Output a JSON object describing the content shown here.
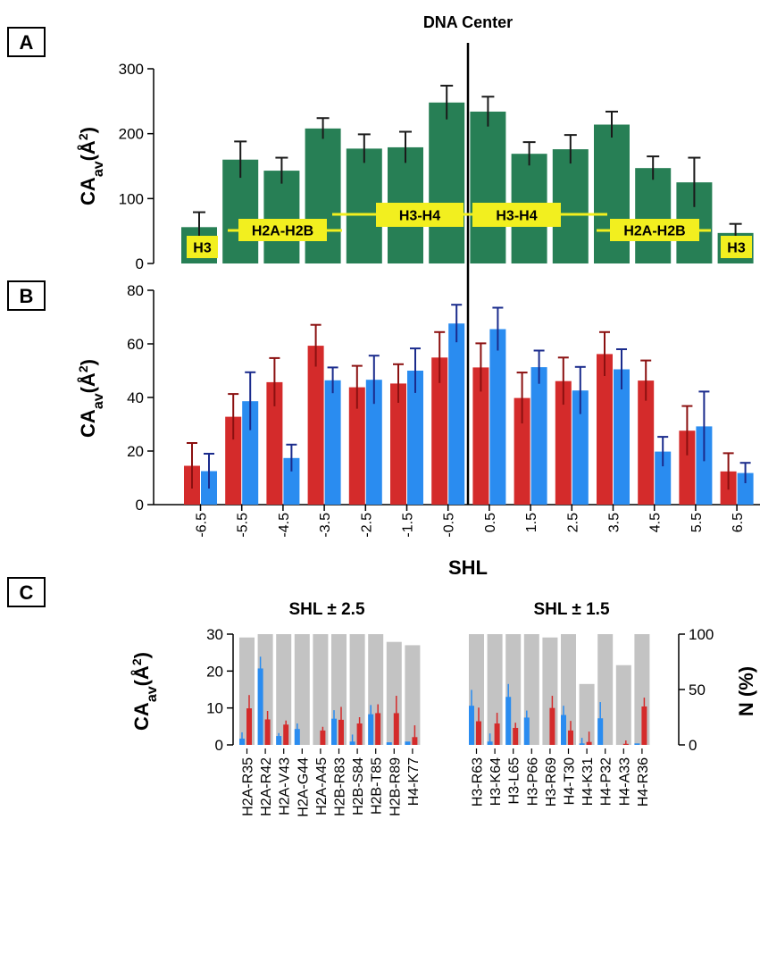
{
  "colors": {
    "green": "#277f55",
    "green_err": "#1a1a1a",
    "red": "#d42b2b",
    "red_err": "#8b1010",
    "blue": "#2a8cf0",
    "blue_err": "#1a2b8c",
    "gray": "#c3c3c3",
    "yellow": "#f2ef1f",
    "axis": "#000000"
  },
  "panels": {
    "a": "A",
    "b": "B",
    "c": "C"
  },
  "chart_data": [
    {
      "id": "A",
      "type": "bar",
      "title": "DNA Center",
      "ylabel": "CA_av(Å²)",
      "ylim": [
        0,
        300
      ],
      "yticks": [
        0,
        100,
        200,
        300
      ],
      "categories": [
        "-6.5",
        "-5.5",
        "-4.5",
        "-3.5",
        "-2.5",
        "-1.5",
        "-0.5",
        "0.5",
        "1.5",
        "2.5",
        "3.5",
        "4.5",
        "5.5",
        "6.5"
      ],
      "values": [
        56,
        160,
        143,
        208,
        177,
        179,
        248,
        234,
        169,
        176,
        214,
        147,
        125,
        47
      ],
      "errors": [
        23,
        28,
        20,
        16,
        22,
        24,
        26,
        23,
        18,
        22,
        20,
        18,
        38,
        14
      ],
      "annotations": [
        "H3",
        "H2A-H2B",
        "H3-H4",
        "H3-H4",
        "H2A-H2B",
        "H3"
      ]
    },
    {
      "id": "B",
      "type": "bar",
      "xlabel": "SHL",
      "ylabel": "CA_av(Å²)",
      "ylim": [
        0,
        80
      ],
      "yticks": [
        0,
        20,
        40,
        60,
        80
      ],
      "categories": [
        "-6.5",
        "-5.5",
        "-4.5",
        "-3.5",
        "-2.5",
        "-1.5",
        "-0.5",
        "0.5",
        "1.5",
        "2.5",
        "3.5",
        "4.5",
        "5.5",
        "6.5"
      ],
      "series": [
        {
          "values": [
            14.5,
            32.8,
            45.7,
            59.3,
            43.8,
            45.2,
            54.9,
            51.2,
            39.8,
            46.1,
            56.2,
            46.3,
            27.6,
            12.4
          ],
          "errors": [
            8.5,
            8.5,
            9.0,
            7.8,
            8.0,
            7.2,
            9.5,
            9.0,
            9.5,
            8.8,
            8.2,
            7.5,
            9.2,
            6.8
          ]
        },
        {
          "values": [
            12.5,
            38.6,
            17.4,
            46.4,
            46.6,
            50.0,
            67.6,
            65.5,
            51.3,
            42.6,
            50.5,
            19.8,
            29.2,
            11.8
          ],
          "errors": [
            6.5,
            10.8,
            5.0,
            4.8,
            9.0,
            8.3,
            7.0,
            8.0,
            6.2,
            8.8,
            7.5,
            5.5,
            13.0,
            3.8
          ]
        }
      ]
    },
    {
      "id": "C-left",
      "type": "bar",
      "title": "SHL ± 2.5",
      "ylabel": "CA_av(Å²)",
      "ylim": [
        0,
        30
      ],
      "yticks": [
        0,
        10,
        20,
        30
      ],
      "y2label": "N (%)",
      "y2lim": [
        0,
        100
      ],
      "y2ticks": [
        0,
        50,
        100
      ],
      "categories": [
        "H2A-R35",
        "H2A-R42",
        "H2A-V43",
        "H2A-G44",
        "H2A-A45",
        "H2B-R83",
        "H2B-S84",
        "H2B-T85",
        "H2B-R89",
        "H4-K77"
      ],
      "n_percent": [
        97,
        100,
        100,
        100,
        100,
        100,
        100,
        100,
        93,
        90
      ],
      "series": [
        {
          "values": [
            1.7,
            20.7,
            2.4,
            4.3,
            0,
            7.1,
            0.9,
            8.3,
            0.7,
            0.9
          ],
          "errors": [
            1.7,
            3.2,
            0.8,
            1.5,
            0,
            2.3,
            1.9,
            2.5,
            0,
            0
          ]
        },
        {
          "values": [
            9.9,
            6.9,
            5.5,
            0,
            3.9,
            6.8,
            5.8,
            8.6,
            8.6,
            2.1
          ],
          "errors": [
            3.6,
            2.3,
            1.1,
            0,
            1.0,
            3.5,
            1.7,
            2.4,
            4.7,
            3.2
          ]
        }
      ]
    },
    {
      "id": "C-right",
      "type": "bar",
      "title": "SHL ± 1.5",
      "ylim": [
        0,
        30
      ],
      "y2label": "N (%)",
      "y2lim": [
        0,
        100
      ],
      "y2ticks": [
        0,
        50,
        100
      ],
      "categories": [
        "H3-R63",
        "H3-K64",
        "H3-L65",
        "H3-P66",
        "H3-R69",
        "H4-T30",
        "H4-K31",
        "H4-P32",
        "H4-A33",
        "H4-R36"
      ],
      "n_percent": [
        100,
        100,
        100,
        100,
        97,
        100,
        55,
        100,
        72,
        100
      ],
      "series": [
        {
          "values": [
            10.6,
            0.9,
            13.0,
            7.4,
            0,
            8.1,
            0.4,
            7.2,
            0,
            0.4
          ],
          "errors": [
            4.3,
            2.2,
            3.5,
            1.9,
            0,
            2.5,
            1.5,
            4.4,
            0,
            0
          ]
        },
        {
          "values": [
            6.4,
            5.8,
            4.6,
            0,
            10.0,
            3.9,
            0.8,
            0,
            0.3,
            10.4
          ],
          "errors": [
            3.7,
            2.9,
            1.4,
            0,
            3.3,
            2.6,
            2.8,
            0,
            0.9,
            2.4
          ]
        }
      ]
    }
  ]
}
